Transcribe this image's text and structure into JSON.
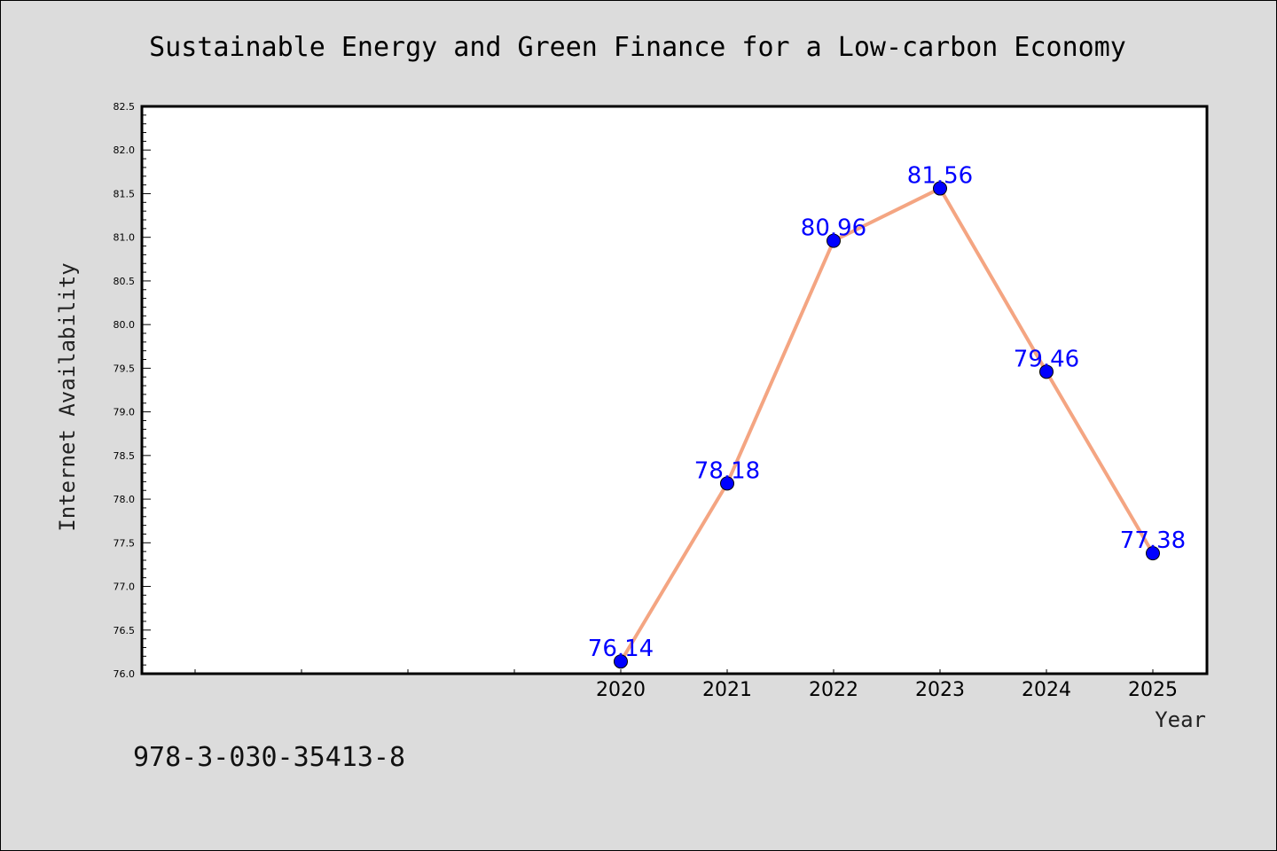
{
  "chart_data": {
    "type": "line",
    "title": "Sustainable Energy and Green Finance for a Low-carbon Economy",
    "xlabel": "Year",
    "ylabel": "Internet Availability",
    "footer": "978-3-030-35413-8",
    "x": [
      "2020",
      "2021",
      "2022",
      "2023",
      "2024",
      "2025"
    ],
    "series": [
      {
        "values": [
          76.14,
          78.18,
          80.96,
          81.56,
          79.46,
          77.38
        ],
        "labels": [
          "76.14",
          "78.18",
          "80.96",
          "81.56",
          "79.46",
          "77.38"
        ]
      }
    ],
    "ylim": [
      76.0,
      82.5
    ],
    "yticks": [
      "76.0",
      "76.5",
      "77.0",
      "77.5",
      "78.0",
      "78.5",
      "79.0",
      "79.5",
      "80.0",
      "80.5",
      "81.0",
      "81.5",
      "82.0",
      "82.5"
    ],
    "grid": false,
    "colors": {
      "line": "#f4a582",
      "marker": "#0000ff",
      "label": "#0000ff",
      "background": "#dcdcdc",
      "plot_background": "#ffffff"
    }
  }
}
